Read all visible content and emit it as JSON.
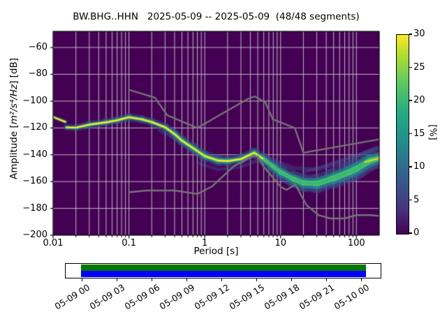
{
  "header": {
    "title": "BW.BHG..HHN   2025-05-09 -- 2025-05-09  (48/48 segments)"
  },
  "axes": {
    "xlabel": "Period [s]",
    "ylabel_prefix": "Amplitude [",
    "ylabel_math": "m²/s⁴/Hz",
    "ylabel_suffix": "] [dB]",
    "x_scale": "log",
    "xlim": [
      0.01,
      200
    ],
    "ylim": [
      -200,
      -48
    ],
    "x_ticks": [
      {
        "p": 0.01,
        "label": "0.01"
      },
      {
        "p": 0.1,
        "label": "0.1"
      },
      {
        "p": 1,
        "label": "1"
      },
      {
        "p": 10,
        "label": "10"
      },
      {
        "p": 100,
        "label": "100"
      }
    ],
    "y_ticks": [
      {
        "db": -60,
        "label": "−60"
      },
      {
        "db": -80,
        "label": "−80"
      },
      {
        "db": -100,
        "label": "−100"
      },
      {
        "db": -120,
        "label": "−120"
      },
      {
        "db": -140,
        "label": "−140"
      },
      {
        "db": -160,
        "label": "−160"
      },
      {
        "db": -180,
        "label": "−180"
      },
      {
        "db": -200,
        "label": "−200"
      }
    ]
  },
  "colorbar": {
    "label": "[%]",
    "min": 0,
    "max": 30,
    "colormap": "viridis",
    "ticks": [
      {
        "v": 0,
        "label": "0"
      },
      {
        "v": 5,
        "label": "5"
      },
      {
        "v": 10,
        "label": "10"
      },
      {
        "v": 15,
        "label": "15"
      },
      {
        "v": 20,
        "label": "20"
      },
      {
        "v": 25,
        "label": "25"
      },
      {
        "v": 30,
        "label": "30"
      }
    ]
  },
  "chart_data": {
    "type": "heatmap",
    "title": "BW.BHG..HHN   2025-05-09 -- 2025-05-09  (48/48 segments)",
    "xlabel": "Period [s]",
    "ylabel": "Amplitude [m2/s4/Hz] [dB]",
    "xlim": [
      0.01,
      200
    ],
    "ylim": [
      -200,
      -48
    ],
    "grid": true,
    "probability_range_pct": [
      0,
      30
    ],
    "mode_curve": {
      "comment_periods_s": "dominant PSD ridge (highest probability) read from plot",
      "periods": [
        0.015,
        0.02,
        0.03,
        0.05,
        0.07,
        0.1,
        0.15,
        0.2,
        0.3,
        0.4,
        0.5,
        0.7,
        1.0,
        1.5,
        2.0,
        3.0,
        4.5,
        6.0,
        8.0,
        10,
        15,
        20,
        30,
        50,
        80,
        100,
        150,
        200
      ],
      "db": [
        -119.6,
        -119.8,
        -117.6,
        -115.8,
        -114.3,
        -112.0,
        -113.6,
        -115.6,
        -119.5,
        -124.5,
        -129.5,
        -135.0,
        -141.0,
        -144.3,
        -144.7,
        -143.2,
        -138.5,
        -143.3,
        -148.8,
        -153.0,
        -158.3,
        -161.0,
        -161.5,
        -157.5,
        -153.0,
        -150.5,
        -144.5,
        -142.5
      ],
      "spread_db": [
        2.5,
        2.5,
        3,
        3,
        3,
        3.2,
        3,
        3,
        3.2,
        3.5,
        3.8,
        4,
        4.2,
        4.2,
        4,
        3.8,
        3.5,
        4.5,
        5,
        5.5,
        6,
        6.5,
        7,
        7.5,
        8,
        8,
        7.5,
        7
      ]
    },
    "intro_segment": {
      "periods": [
        0.01,
        0.0145
      ],
      "db": [
        -111.8,
        -115.5
      ]
    },
    "bright_right_segment": {
      "periods": [
        130,
        200
      ],
      "db": [
        -145.5,
        -142.5
      ]
    },
    "wings": [
      {
        "pts": [
          [
            7,
            -143
          ],
          [
            15,
            -150
          ],
          [
            30,
            -151
          ],
          [
            60,
            -146
          ],
          [
            100,
            -141
          ],
          [
            150,
            -137
          ],
          [
            200,
            -135
          ]
        ],
        "w": 3
      },
      {
        "pts": [
          [
            20,
            -153
          ],
          [
            40,
            -148
          ],
          [
            80,
            -142
          ],
          [
            120,
            -139
          ],
          [
            200,
            -134
          ]
        ],
        "w": 2.5
      },
      {
        "pts": [
          [
            10,
            -158
          ],
          [
            20,
            -166
          ],
          [
            40,
            -164
          ],
          [
            80,
            -158
          ],
          [
            150,
            -150
          ],
          [
            200,
            -147
          ]
        ],
        "w": 3
      },
      {
        "pts": [
          [
            0.8,
            -146
          ],
          [
            1.5,
            -151
          ],
          [
            3,
            -149
          ],
          [
            5,
            -144
          ]
        ],
        "w": 2.5
      },
      {
        "pts": [
          [
            0.25,
            -122
          ],
          [
            0.4,
            -128
          ],
          [
            0.6,
            -134
          ],
          [
            0.9,
            -141
          ]
        ],
        "w": 2.5
      }
    ],
    "noise_models": {
      "nhnm": [
        [
          0.1,
          -91.5
        ],
        [
          0.22,
          -97.4
        ],
        [
          0.32,
          -110.5
        ],
        [
          0.8,
          -120.0
        ],
        [
          3.8,
          -98.0
        ],
        [
          4.6,
          -96.5
        ],
        [
          6.3,
          -101.0
        ],
        [
          7.9,
          -113.5
        ],
        [
          15.4,
          -120.0
        ],
        [
          20.0,
          -138.5
        ],
        [
          200.0,
          -128.5
        ]
      ],
      "nlnm": [
        [
          0.1,
          -168.0
        ],
        [
          0.17,
          -166.7
        ],
        [
          0.4,
          -166.7
        ],
        [
          0.8,
          -169.2
        ],
        [
          1.24,
          -163.7
        ],
        [
          2.4,
          -148.6
        ],
        [
          4.3,
          -141.1
        ],
        [
          5.0,
          -141.1
        ],
        [
          6.0,
          -149.0
        ],
        [
          10.0,
          -163.8
        ],
        [
          12.0,
          -166.2
        ],
        [
          15.6,
          -162.1
        ],
        [
          21.9,
          -177.5
        ],
        [
          31.6,
          -185.0
        ],
        [
          45.0,
          -187.5
        ],
        [
          70.0,
          -187.5
        ],
        [
          101.0,
          -185.0
        ],
        [
          154.0,
          -185.0
        ],
        [
          200.0,
          -185.6
        ]
      ]
    },
    "colors": {
      "background": "#440154",
      "grid": "#cccccc",
      "noise_model_line": "#757575",
      "layer_outer": "rgba(59,82,139,0.42)",
      "layer_mid": "rgba(38,130,142,0.75)",
      "layer_inner": "rgba(73,193,109,0.88)",
      "core_yellow": "#fde725",
      "core_green": "#35b779",
      "wing": "rgba(70,100,160,0.32)"
    }
  },
  "timeline": {
    "labels": [
      "05-09 00",
      "05-09 03",
      "05-09 06",
      "05-09 09",
      "05-09 12",
      "05-09 15",
      "05-09 18",
      "05-09 21",
      "05-10 00"
    ],
    "bar_top_color": "#007700",
    "bar_bottom_color": "#0000ff"
  }
}
